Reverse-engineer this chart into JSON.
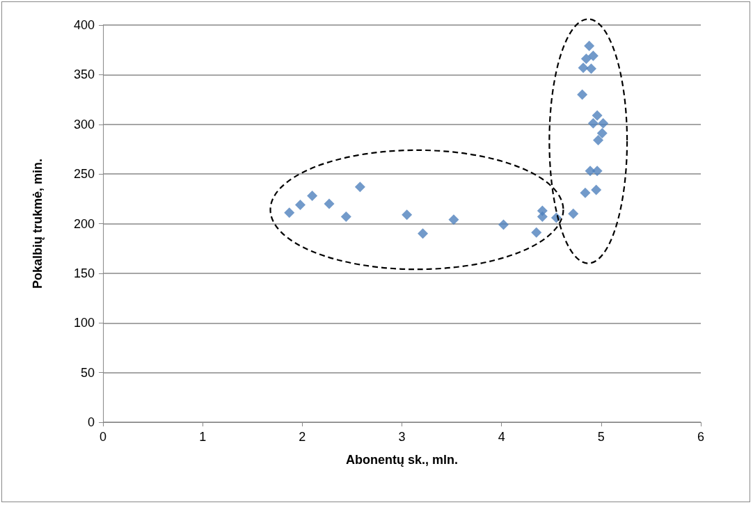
{
  "chart_data": {
    "type": "scatter",
    "xlabel": "Abonentų sk., mln.",
    "ylabel": "Pokalbių trukmė, min.",
    "x": [
      1.87,
      1.98,
      2.1,
      2.27,
      2.44,
      2.58,
      3.05,
      3.21,
      3.52,
      4.02,
      4.35,
      4.41,
      4.41,
      4.55,
      4.72,
      4.88,
      4.92,
      4.85,
      4.82,
      4.9,
      4.81,
      4.96,
      4.92,
      5.02,
      5.01,
      4.97,
      4.89,
      4.96,
      4.84,
      4.95
    ],
    "series": [
      {
        "color": "#4f81bd",
        "values": [
          211,
          219,
          228,
          220,
          207,
          237,
          209,
          190,
          204,
          199,
          191,
          213,
          207,
          206,
          210,
          379,
          369,
          366,
          357,
          356,
          330,
          309,
          301,
          301,
          291,
          284,
          253,
          253,
          231,
          234
        ]
      }
    ],
    "xlim": [
      0,
      6
    ],
    "xticks": [
      0,
      1,
      2,
      3,
      4,
      5,
      6
    ],
    "ylim": [
      0,
      400
    ],
    "yticks": [
      0,
      50,
      100,
      150,
      200,
      250,
      300,
      350,
      400
    ],
    "grid": "y",
    "marker": "diamond"
  }
}
